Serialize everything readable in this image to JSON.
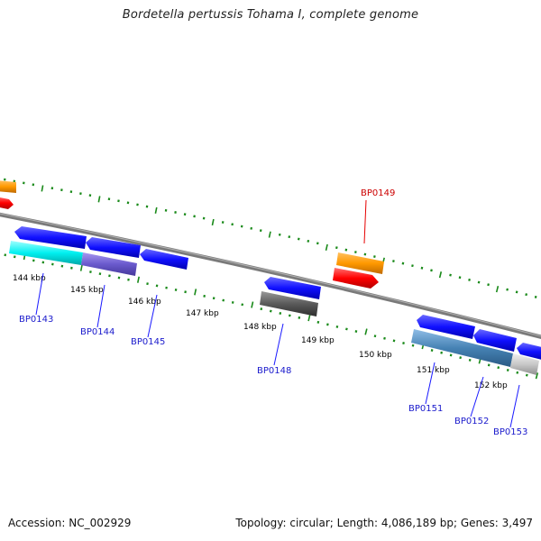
{
  "title": "Bordetella pertussis Tohama I, complete genome",
  "footer": {
    "accession": "Accession: NC_002929",
    "summary": "Topology: circular; Length: 4,086,189 bp; Genes: 3,497"
  },
  "ticks": {
    "labels": [
      "144 kbp",
      "145 kbp",
      "146 kbp",
      "147 kbp",
      "148 kbp",
      "149 kbp",
      "150 kbp",
      "151 kbp",
      "152 kbp"
    ],
    "tick_color": "#1a8a1a",
    "label_color": "#000000"
  },
  "genes": [
    {
      "id": "BP0143",
      "color": "#1a1aff"
    },
    {
      "id": "BP0144",
      "color": "#1a1aff"
    },
    {
      "id": "BP0145",
      "color": "#1a1aff"
    },
    {
      "id": "BP0148",
      "color": "#1a1aff"
    },
    {
      "id": "BP0149",
      "color": "#e60000"
    },
    {
      "id": "BP0151",
      "color": "#1a1aff"
    },
    {
      "id": "BP0152",
      "color": "#1a1aff"
    },
    {
      "id": "BP0153",
      "color": "#1a1aff"
    }
  ],
  "colors": {
    "backbone": "#808080",
    "forward_gene": "#1a1aff",
    "reverse_gene": "#ff0000",
    "rna_gene": "#ff9900",
    "cog_cyan": "#00e5e5",
    "cog_purple": "#6a5acd",
    "cog_gray": "#555555",
    "cog_steel": "#4682b4",
    "cog_light": "#c0c0c0"
  }
}
